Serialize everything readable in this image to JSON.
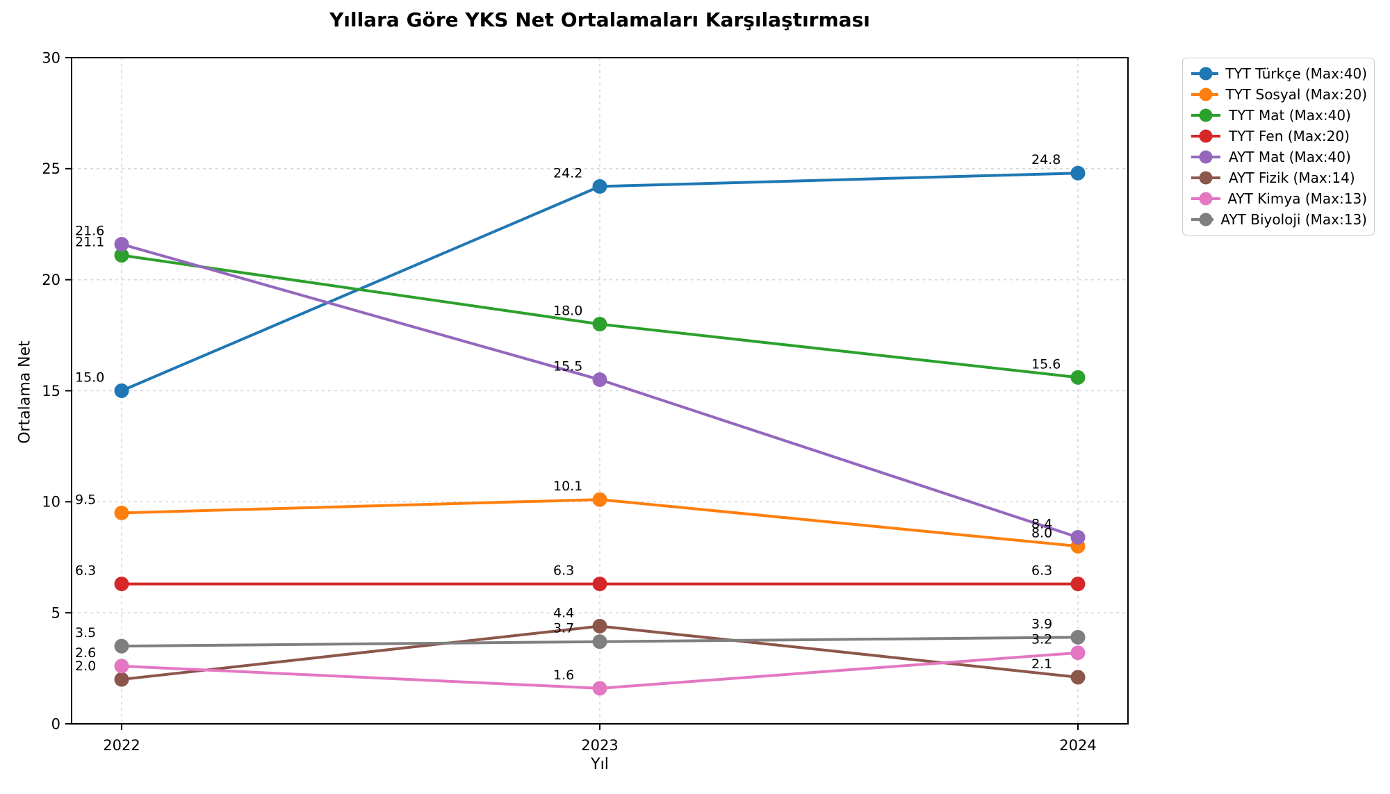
{
  "page": {
    "background": "#ffffff"
  },
  "chart_data": {
    "type": "line",
    "title": "Yıllara Göre YKS Net Ortalamaları Karşılaştırması",
    "xlabel": "Yıl",
    "ylabel": "Ortalama Net",
    "x": [
      "2022",
      "2023",
      "2024"
    ],
    "ylim": [
      0,
      30
    ],
    "yticks": [
      0,
      5,
      10,
      15,
      20,
      25,
      30
    ],
    "grid": "dashed-horizontal-and-vertical",
    "grid_color": "#d8d8d8",
    "legend_position": "outside-right-top",
    "point_labels": "one-decimal-above-left",
    "series": [
      {
        "name": "TYT Türkçe (Max:40)",
        "color": "#1f77b4",
        "values": [
          15.0,
          24.2,
          24.8
        ]
      },
      {
        "name": "TYT Sosyal (Max:20)",
        "color": "#ff7f0e",
        "values": [
          9.5,
          10.1,
          8.0
        ]
      },
      {
        "name": "TYT Mat (Max:40)",
        "color": "#2ca02c",
        "values": [
          21.1,
          18.0,
          15.6
        ]
      },
      {
        "name": "TYT Fen (Max:20)",
        "color": "#d62728",
        "values": [
          6.3,
          6.3,
          6.3
        ]
      },
      {
        "name": "AYT Mat (Max:40)",
        "color": "#9467bd",
        "values": [
          21.6,
          15.5,
          8.4
        ]
      },
      {
        "name": "AYT Fizik (Max:14)",
        "color": "#8c564b",
        "values": [
          2.0,
          4.4,
          2.1
        ]
      },
      {
        "name": "AYT Kimya (Max:13)",
        "color": "#e377c2",
        "values": [
          2.6,
          1.6,
          3.2
        ]
      },
      {
        "name": "AYT Biyoloji (Max:13)",
        "color": "#7f7f7f",
        "values": [
          3.5,
          3.7,
          3.9
        ]
      }
    ]
  }
}
